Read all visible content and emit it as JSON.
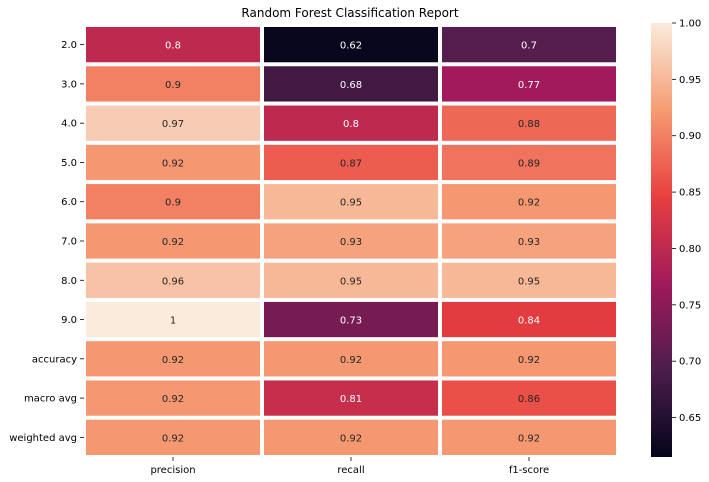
{
  "chart_data": {
    "type": "heatmap",
    "title": "Random Forest Classification Report",
    "rows": [
      "2.0",
      "3.0",
      "4.0",
      "5.0",
      "6.0",
      "7.0",
      "8.0",
      "9.0",
      "accuracy",
      "macro avg",
      "weighted avg"
    ],
    "columns": [
      "precision",
      "recall",
      "f1-score"
    ],
    "values": [
      [
        0.8,
        0.62,
        0.7
      ],
      [
        0.9,
        0.68,
        0.77
      ],
      [
        0.97,
        0.8,
        0.88
      ],
      [
        0.92,
        0.87,
        0.89
      ],
      [
        0.9,
        0.95,
        0.92
      ],
      [
        0.92,
        0.93,
        0.93
      ],
      [
        0.96,
        0.95,
        0.95
      ],
      [
        1,
        0.73,
        0.84
      ],
      [
        0.92,
        0.92,
        0.92
      ],
      [
        0.92,
        0.81,
        0.86
      ],
      [
        0.92,
        0.92,
        0.92
      ]
    ],
    "value_labels": [
      [
        "0.8",
        "0.62",
        "0.7"
      ],
      [
        "0.9",
        "0.68",
        "0.77"
      ],
      [
        "0.97",
        "0.8",
        "0.88"
      ],
      [
        "0.92",
        "0.87",
        "0.89"
      ],
      [
        "0.9",
        "0.95",
        "0.92"
      ],
      [
        "0.92",
        "0.93",
        "0.93"
      ],
      [
        "0.96",
        "0.95",
        "0.95"
      ],
      [
        "1",
        "0.73",
        "0.84"
      ],
      [
        "0.92",
        "0.92",
        "0.92"
      ],
      [
        "0.92",
        "0.81",
        "0.86"
      ],
      [
        "0.92",
        "0.92",
        "0.92"
      ]
    ],
    "colorbar": {
      "vmin": 0.615,
      "vmax": 1.0,
      "ticks": [
        0.65,
        0.7,
        0.75,
        0.8,
        0.85,
        0.9,
        0.95,
        1.0
      ],
      "tick_labels": [
        "0.65",
        "0.70",
        "0.75",
        "0.80",
        "0.85",
        "0.90",
        "0.95",
        "1.00"
      ],
      "colormap": "rocket",
      "colors": [
        "#03051a",
        "#4c1d4b",
        "#a11a5b",
        "#e83f3f",
        "#f69c73",
        "#faebdd"
      ]
    },
    "grid_line_color": "#ffffff"
  }
}
